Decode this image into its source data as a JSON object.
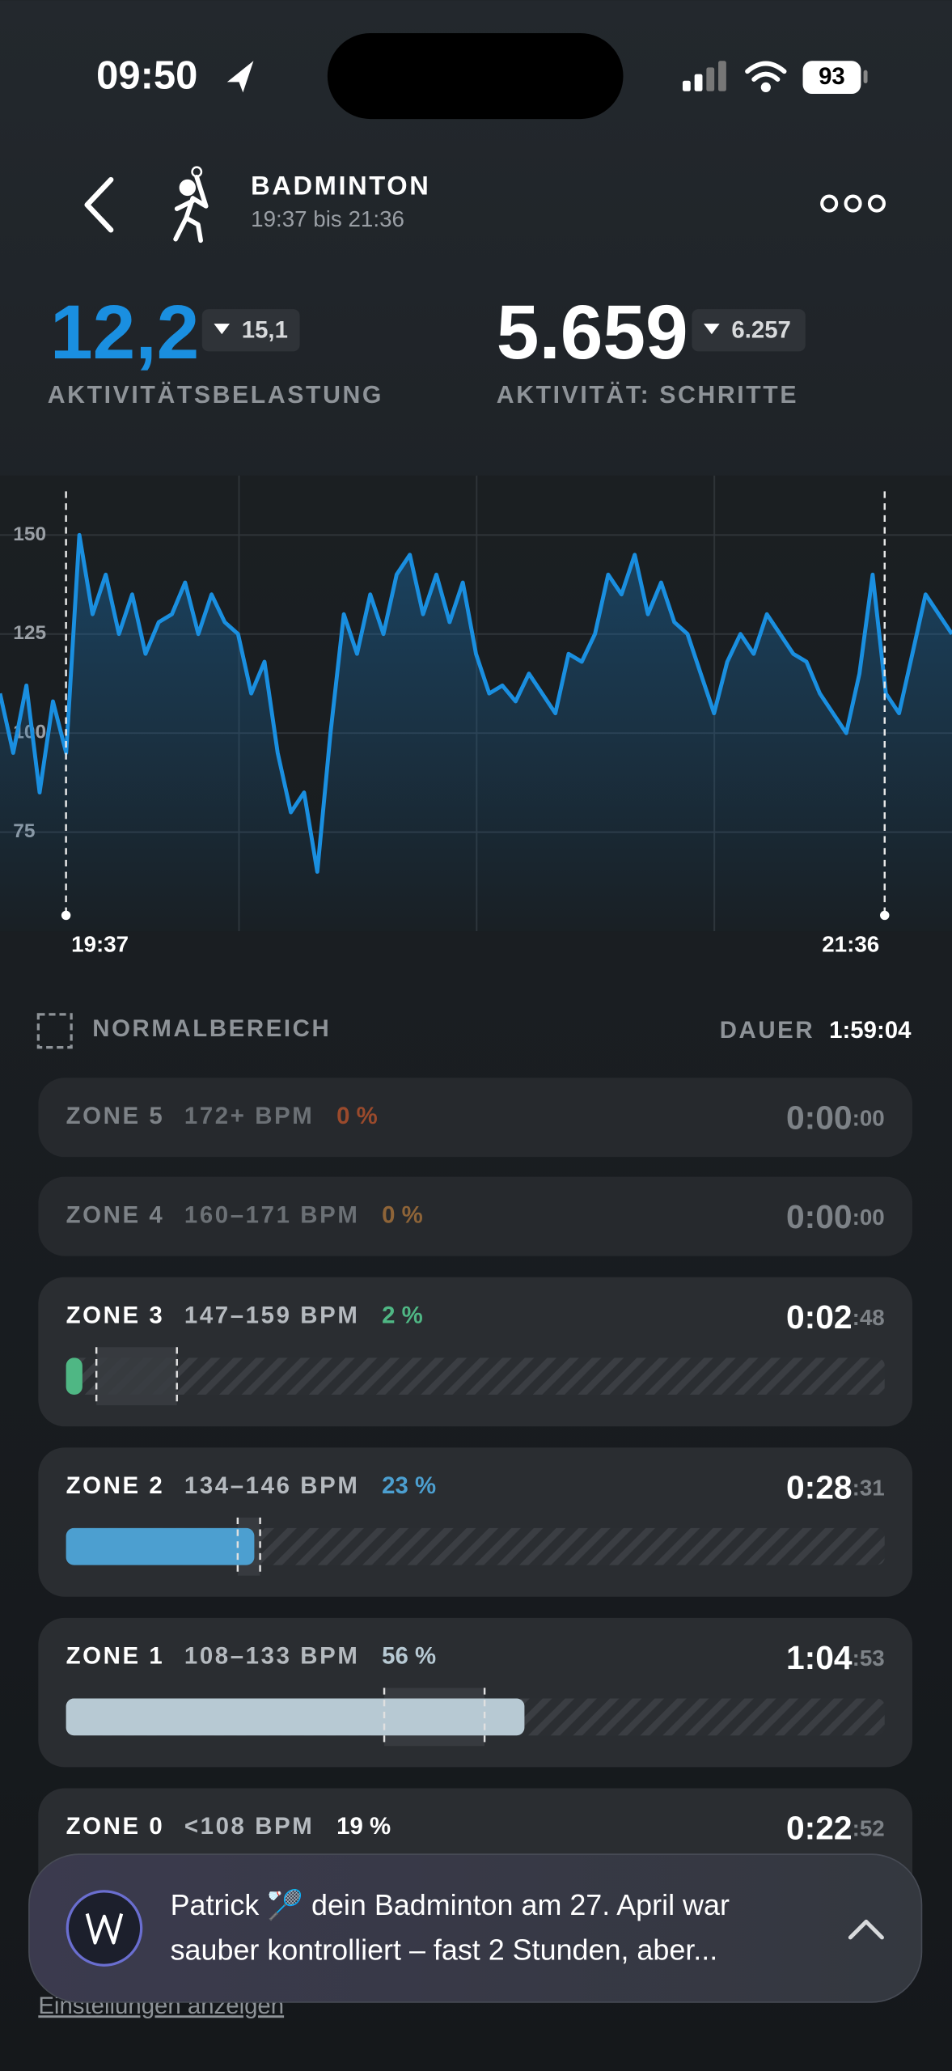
{
  "status_bar": {
    "time": "09:50",
    "battery": "93"
  },
  "header": {
    "title": "BADMINTON",
    "subtitle": "19:37 bis 21:36"
  },
  "metrics": [
    {
      "value": "12,2",
      "previous": "15,1",
      "label": "AKTIVITÄTSBELASTUNG"
    },
    {
      "value": "5.659",
      "previous": "6.257",
      "label": "AKTIVITÄT: SCHRITTE"
    }
  ],
  "chart": {
    "type": "line",
    "color": "#1a8fe0",
    "ylim": [
      50,
      165
    ],
    "yticks": [
      75,
      100,
      125,
      150
    ],
    "start_label": "19:37",
    "end_label": "21:36",
    "values": [
      110,
      95,
      112,
      85,
      108,
      95,
      150,
      130,
      140,
      125,
      135,
      120,
      128,
      130,
      138,
      125,
      135,
      128,
      125,
      110,
      118,
      95,
      80,
      85,
      65,
      100,
      130,
      120,
      135,
      125,
      140,
      145,
      130,
      140,
      128,
      138,
      120,
      110,
      112,
      108,
      115,
      110,
      105,
      120,
      118,
      125,
      140,
      135,
      145,
      130,
      138,
      128,
      125,
      115,
      105,
      118,
      125,
      120,
      130,
      125,
      120,
      118,
      110,
      105,
      100,
      115,
      140,
      110,
      105,
      120,
      135,
      130,
      125
    ]
  },
  "legend": {
    "normal_range": "NORMALBEREICH",
    "duration_label": "DAUER",
    "duration": "1:59:04"
  },
  "zones": [
    {
      "name": "ZONE 5",
      "range": "172+ BPM",
      "percent": {
        "value": 0,
        "label": "0 %"
      },
      "color": "#9a4a2c",
      "duration": "0:00",
      "seconds": ":00"
    },
    {
      "name": "ZONE 4",
      "range": "160–171 BPM",
      "percent": {
        "value": 0,
        "label": "0 %"
      },
      "color": "#8e6438",
      "duration": "0:00",
      "seconds": ":00"
    },
    {
      "name": "ZONE 3",
      "range": "147–159 BPM",
      "percent": {
        "value": 2,
        "label": "2 %"
      },
      "color": "#4fb784",
      "duration": "0:02",
      "seconds": ":48"
    },
    {
      "name": "ZONE 2",
      "range": "134–146 BPM",
      "percent": {
        "value": 23,
        "label": "23 %"
      },
      "color": "#4c9fd0",
      "duration": "0:28",
      "seconds": ":31"
    },
    {
      "name": "ZONE 1",
      "range": "108–133 BPM",
      "percent": {
        "value": 56,
        "label": "56 %"
      },
      "color": "#b7c9d3",
      "duration": "1:04",
      "seconds": ":53"
    },
    {
      "name": "ZONE 0",
      "range": "<108 BPM",
      "percent": {
        "value": 19,
        "label": "19 %"
      },
      "color": "#ffffff",
      "duration": "0:22",
      "seconds": ":52"
    }
  ],
  "footer_link": "Einstellungen anzeigen",
  "notification": {
    "line1": "Patrick 🏸 dein Badminton am 27. April war",
    "line2": "sauber kontrolliert – fast 2 Stunden, aber..."
  }
}
